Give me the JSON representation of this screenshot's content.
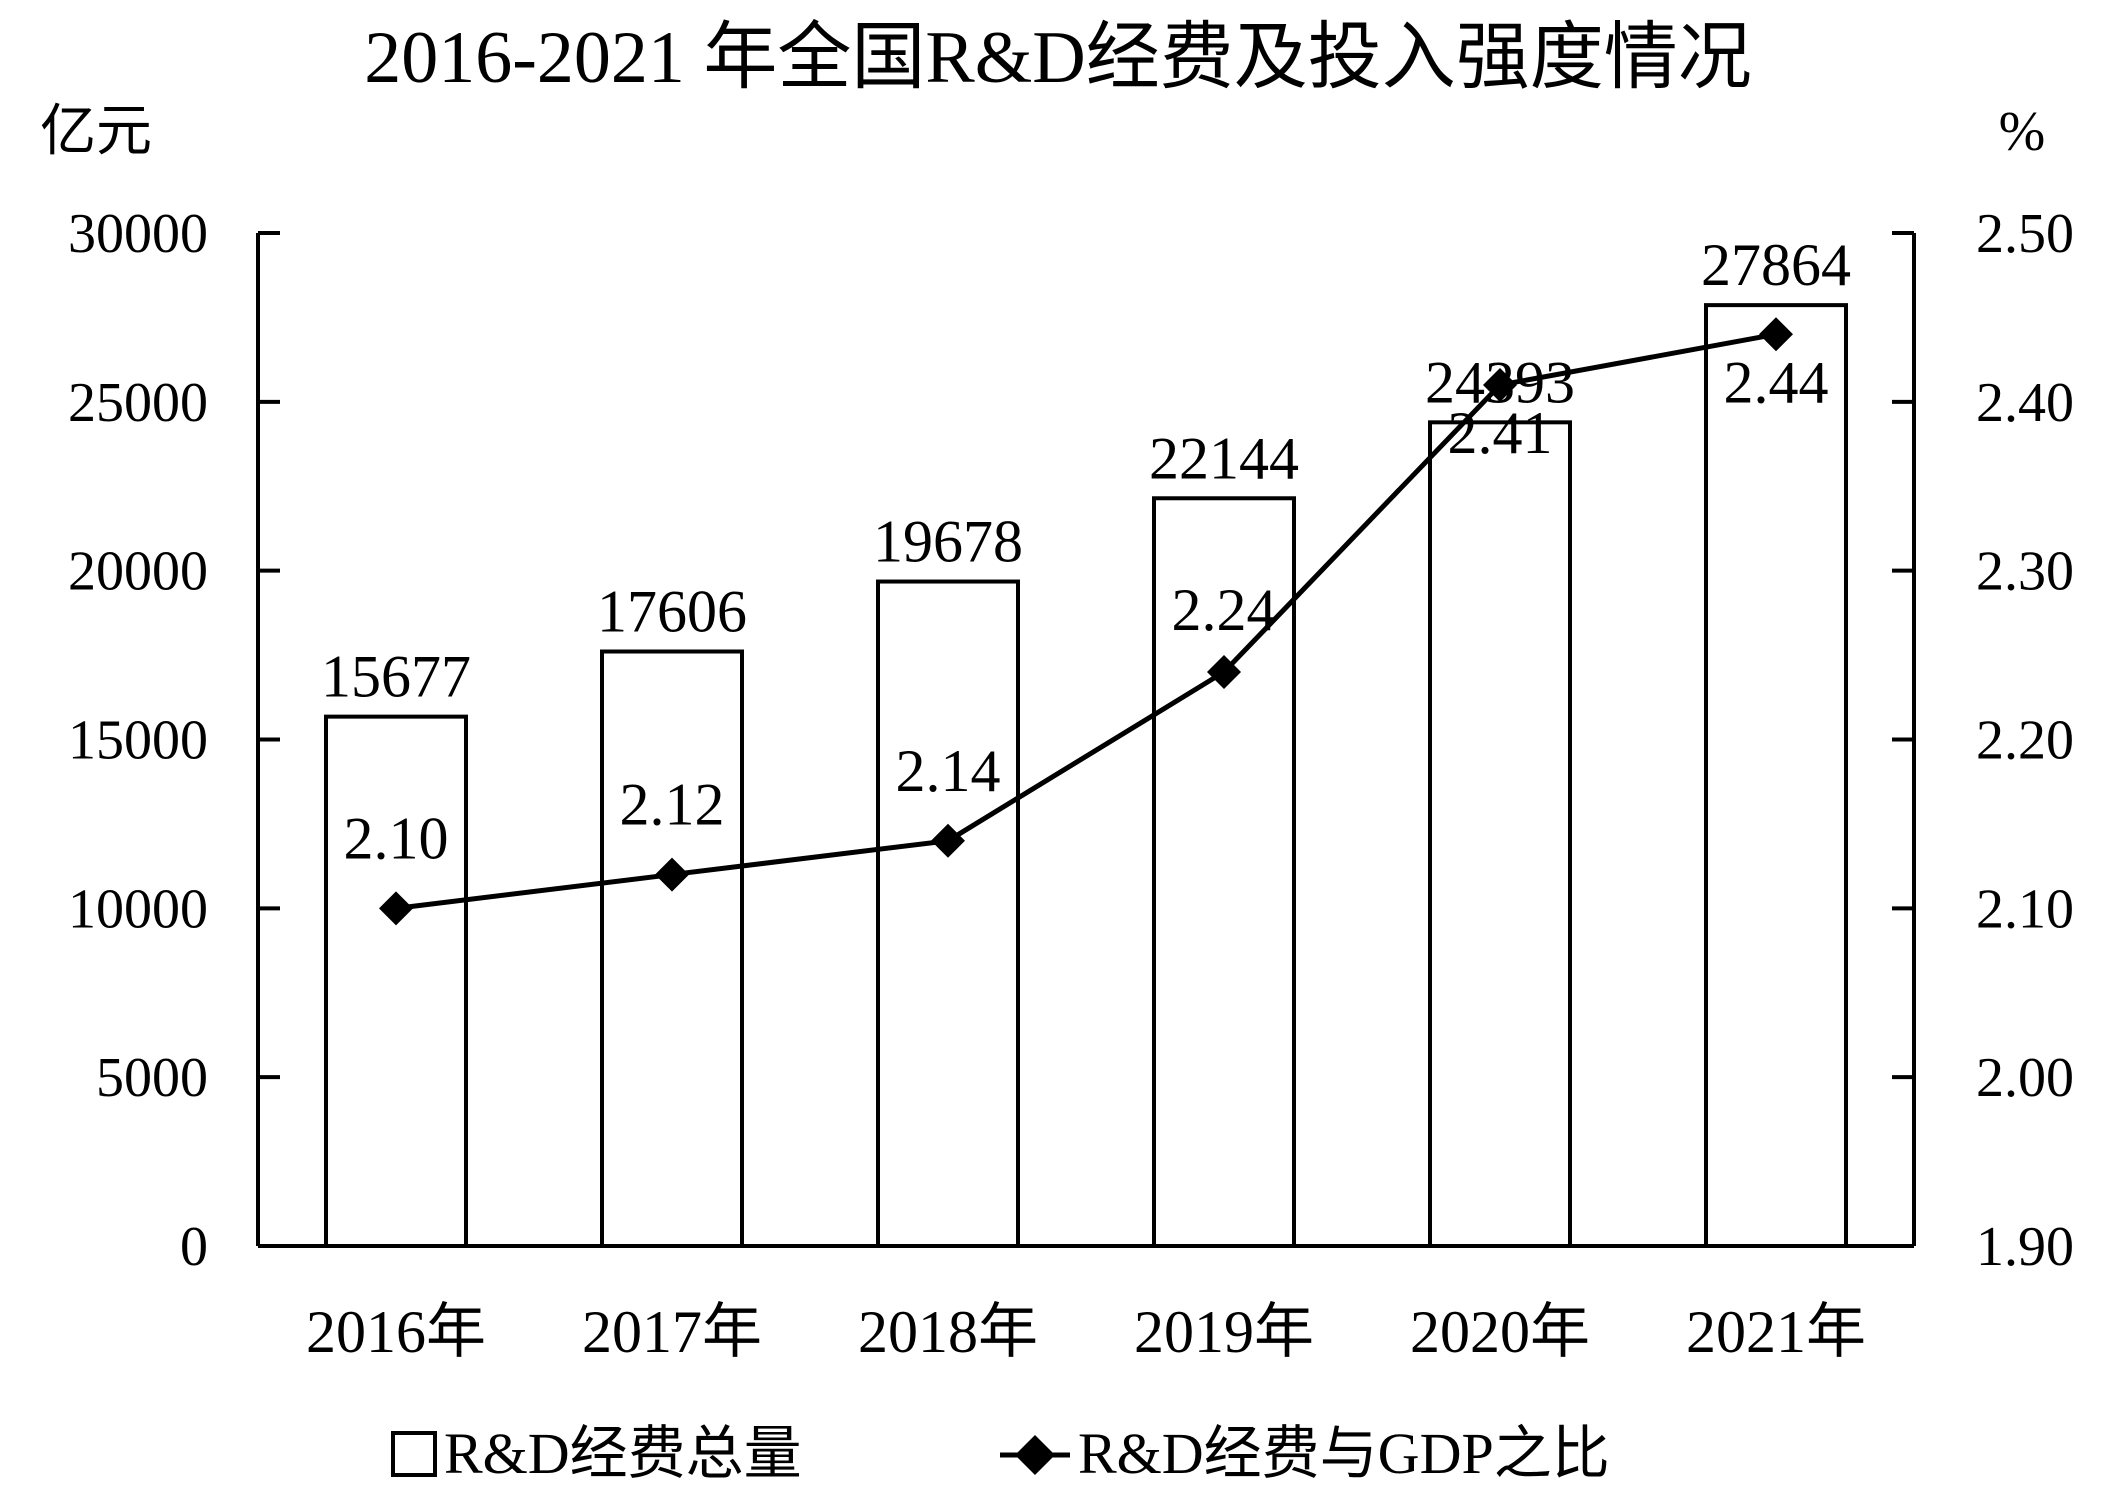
{
  "chart_data": {
    "type": "bar",
    "title": "2016-2021 年全国R&D经费及投入强度情况",
    "categories": [
      "2016年",
      "2017年",
      "2018年",
      "2019年",
      "2020年",
      "2021年"
    ],
    "left_axis": {
      "unit": "亿元",
      "ylim": [
        0,
        30000
      ],
      "ticks": [
        0,
        5000,
        10000,
        15000,
        20000,
        25000,
        30000
      ],
      "tick_labels": [
        "0",
        "5000",
        "10000",
        "15000",
        "20000",
        "25000",
        "30000"
      ]
    },
    "right_axis": {
      "unit": "%",
      "ylim": [
        1.9,
        2.5
      ],
      "ticks": [
        1.9,
        2.0,
        2.1,
        2.2,
        2.3,
        2.4,
        2.5
      ],
      "tick_labels": [
        "1.90",
        "2.00",
        "2.10",
        "2.20",
        "2.30",
        "2.40",
        "2.50"
      ]
    },
    "series": [
      {
        "name": "R&D经费总量",
        "type": "bar",
        "axis": "left",
        "values": [
          15677,
          17606,
          19678,
          22144,
          24393,
          27864
        ],
        "labels": [
          "15677",
          "17606",
          "19678",
          "22144",
          "24393",
          "27864"
        ]
      },
      {
        "name": "R&D经费与GDP之比",
        "type": "line",
        "marker": "diamond",
        "axis": "right",
        "values": [
          2.1,
          2.12,
          2.14,
          2.24,
          2.41,
          2.44
        ],
        "labels": [
          "2.10",
          "2.12",
          "2.14",
          "2.24",
          "2.41",
          "2.44"
        ]
      }
    ],
    "grid": false,
    "legend_position": "bottom"
  }
}
